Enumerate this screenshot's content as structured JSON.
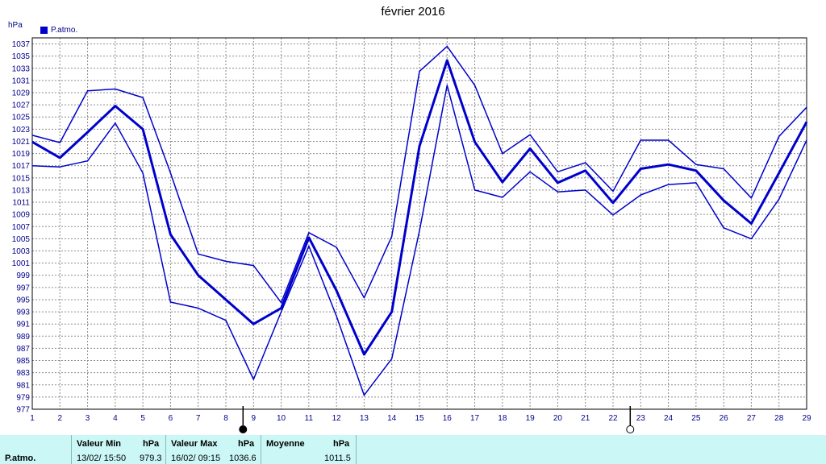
{
  "chart_data": {
    "type": "line",
    "title": "février 2016",
    "ylabel": "hPa",
    "legend": {
      "entries": [
        "P.atmo."
      ],
      "placement": "top-left"
    },
    "ylim": [
      977,
      1038
    ],
    "yticks": [
      977,
      979,
      981,
      983,
      985,
      987,
      989,
      991,
      993,
      995,
      997,
      999,
      1001,
      1003,
      1005,
      1007,
      1009,
      1011,
      1013,
      1015,
      1017,
      1019,
      1021,
      1023,
      1025,
      1027,
      1029,
      1031,
      1033,
      1035,
      1037
    ],
    "x": [
      1,
      2,
      3,
      4,
      5,
      6,
      7,
      8,
      9,
      10,
      11,
      12,
      13,
      14,
      15,
      16,
      17,
      18,
      19,
      20,
      21,
      22,
      23,
      24,
      25,
      26,
      27,
      28,
      29
    ],
    "grid": true,
    "series": [
      {
        "name": "P.atmo.",
        "role": "max",
        "values": [
          1022,
          1020.8,
          1029.3,
          1029.6,
          1028.2,
          1015.8,
          1002.5,
          1001.3,
          1000.6,
          994.5,
          1006,
          1003.6,
          995.3,
          1005.4,
          1032.5,
          1036.6,
          1030.2,
          1019,
          1022.1,
          1016,
          1017.5,
          1012.8,
          1021.2,
          1021.2,
          1017.2,
          1016.5,
          1011.7,
          1021.8,
          1026.6
        ]
      },
      {
        "name": "P.atmo.",
        "role": "mean",
        "values": [
          1020.9,
          1018.3,
          1022.5,
          1026.8,
          1023,
          1005.7,
          999,
          995,
          991,
          993.6,
          1005.2,
          996.5,
          986,
          993,
          1020.2,
          1034.3,
          1020.9,
          1014.3,
          1019.8,
          1014.2,
          1016.2,
          1010.9,
          1016.5,
          1017.2,
          1016.2,
          1011.3,
          1007.5,
          1015.8,
          1024.2
        ]
      },
      {
        "name": "P.atmo.",
        "role": "min",
        "values": [
          1017,
          1016.8,
          1017.8,
          1024,
          1015.8,
          994.6,
          993.6,
          991.6,
          981.9,
          993,
          1003.8,
          992.3,
          979.3,
          985.3,
          1006.3,
          1030.2,
          1013,
          1011.8,
          1016,
          1012.7,
          1013,
          1008.9,
          1012.2,
          1013.9,
          1014.2,
          1006.8,
          1005,
          1011.5,
          1021.2
        ]
      }
    ],
    "markers": [
      {
        "x": 9,
        "symbol": "full-moon"
      },
      {
        "x": 23,
        "symbol": "new-moon"
      }
    ],
    "colors": {
      "line": "#0000cc",
      "grid": "#8c8c8c",
      "axis_text": "#00008c",
      "panel": "#ccf7f7"
    }
  },
  "stats": {
    "series_label": "P.atmo.",
    "min": {
      "header": "Valeur Min",
      "unit": "hPa",
      "datetime": "13/02/  15:50",
      "value": "979.3"
    },
    "max": {
      "header": "Valeur Max",
      "unit": "hPa",
      "datetime": "16/02/  09:15",
      "value": "1036.6"
    },
    "mean": {
      "header": "Moyenne",
      "unit": "hPa",
      "value": "1011.5"
    }
  }
}
